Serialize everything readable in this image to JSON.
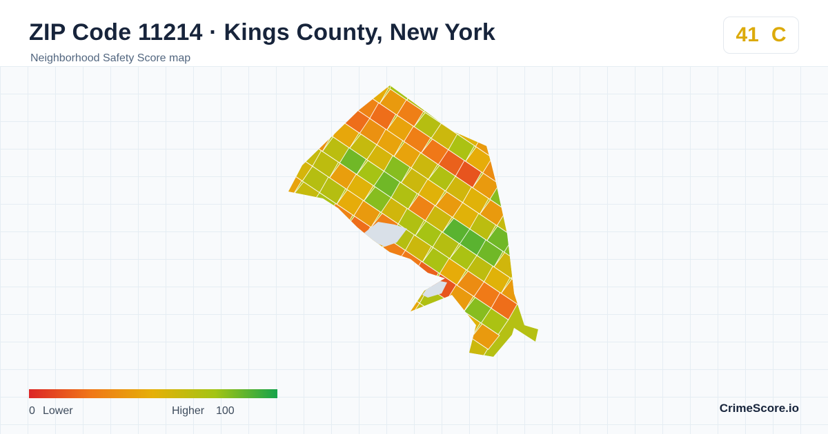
{
  "header": {
    "title": "ZIP Code 11214 · Kings County, New York",
    "subtitle": "Neighborhood Safety Score map"
  },
  "score": {
    "value": "41",
    "grade": "C",
    "color": "#dcaa0a"
  },
  "legend": {
    "min_label": "0",
    "low_label": "Lower",
    "high_label": "Higher",
    "max_label": "100",
    "gradient_colors": [
      "#dc2626",
      "#f07818",
      "#e5b008",
      "#a3c414",
      "#16a34a"
    ]
  },
  "brand": "CrimeScore.io",
  "palette": {
    "no_data": "#d9e0e8",
    "boundary": "#ffffff"
  },
  "map_data": {
    "type": "choropleth",
    "metric": "safety score",
    "color_scale": [
      0,
      100
    ],
    "cell_scores": [
      62,
      62,
      65,
      42,
      52,
      80,
      58,
      70,
      74,
      68,
      72,
      65,
      52,
      40,
      74,
      56,
      68,
      68,
      48,
      40,
      28,
      68,
      60,
      72,
      48,
      34,
      26,
      22,
      44,
      62,
      72,
      30,
      22,
      44,
      28,
      25,
      18,
      14,
      40,
      80,
      72,
      76,
      24,
      28,
      40,
      22,
      36,
      44,
      44,
      60,
      70,
      58,
      52,
      40,
      62,
      58,
      30,
      56,
      78,
      42,
      40,
      46,
      62,
      56,
      80,
      60,
      52,
      40,
      52,
      66,
      84,
      80,
      62,
      72,
      60,
      36,
      66,
      84,
      74,
      84,
      70,
      30,
      60,
      88,
      88,
      84,
      58,
      60
    ],
    "no_data_areas": 2
  }
}
